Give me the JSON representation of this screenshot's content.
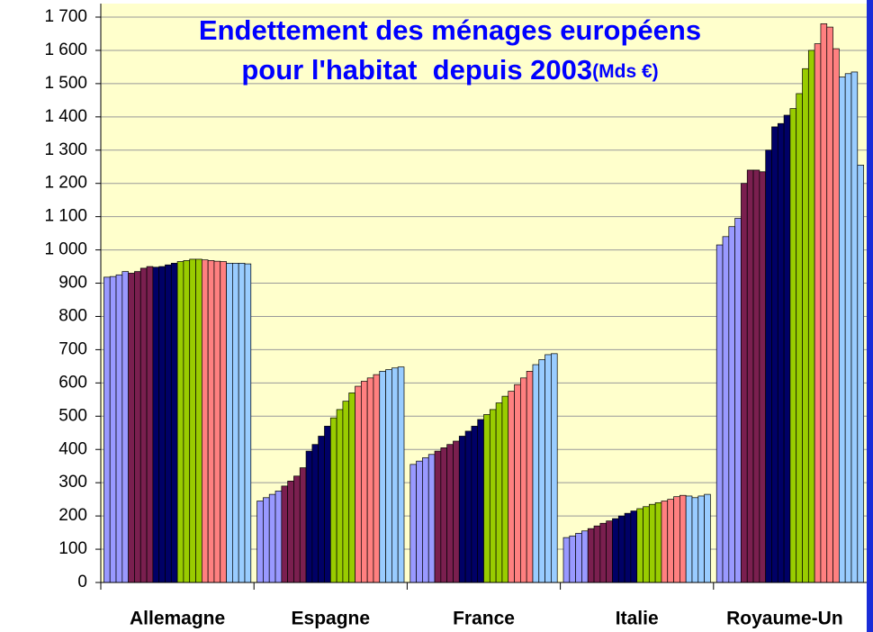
{
  "chart_data": {
    "type": "bar",
    "title": "Endettement des ménages européens",
    "subtitle": "pour l'habitat  depuis 2003",
    "unit": "(Mds €)",
    "categories": [
      "Allemagne",
      "Espagne",
      "France",
      "Italie",
      "Royaume-Un"
    ],
    "series": [
      {
        "color": "#9999ff",
        "values": [
          918,
          245,
          355,
          135,
          1015
        ]
      },
      {
        "color": "#9999ff",
        "values": [
          920,
          255,
          365,
          140,
          1040
        ]
      },
      {
        "color": "#9999ff",
        "values": [
          925,
          265,
          375,
          148,
          1070
        ]
      },
      {
        "color": "#9999ff",
        "values": [
          935,
          275,
          385,
          155,
          1095
        ]
      },
      {
        "color": "#7a1f4f",
        "values": [
          930,
          290,
          395,
          162,
          1200
        ]
      },
      {
        "color": "#7a1f4f",
        "values": [
          935,
          305,
          405,
          170,
          1240
        ]
      },
      {
        "color": "#7a1f4f",
        "values": [
          945,
          320,
          415,
          178,
          1240
        ]
      },
      {
        "color": "#7a1f4f",
        "values": [
          950,
          345,
          425,
          185,
          1235
        ]
      },
      {
        "color": "#000066",
        "values": [
          948,
          395,
          440,
          192,
          1300
        ]
      },
      {
        "color": "#000066",
        "values": [
          950,
          415,
          455,
          200,
          1370
        ]
      },
      {
        "color": "#000066",
        "values": [
          955,
          440,
          470,
          208,
          1380
        ]
      },
      {
        "color": "#000066",
        "values": [
          960,
          470,
          490,
          215,
          1405
        ]
      },
      {
        "color": "#99cc00",
        "values": [
          965,
          495,
          505,
          222,
          1425
        ]
      },
      {
        "color": "#99cc00",
        "values": [
          968,
          520,
          520,
          228,
          1470
        ]
      },
      {
        "color": "#99cc00",
        "values": [
          972,
          545,
          540,
          235,
          1545
        ]
      },
      {
        "color": "#99cc00",
        "values": [
          972,
          570,
          560,
          240,
          1600
        ]
      },
      {
        "color": "#ff8080",
        "values": [
          970,
          590,
          575,
          245,
          1620
        ]
      },
      {
        "color": "#ff8080",
        "values": [
          968,
          605,
          595,
          250,
          1680
        ]
      },
      {
        "color": "#ff8080",
        "values": [
          966,
          615,
          615,
          258,
          1670
        ]
      },
      {
        "color": "#ff8080",
        "values": [
          965,
          625,
          635,
          262,
          1605
        ]
      },
      {
        "color": "#99ccff",
        "values": [
          960,
          635,
          655,
          260,
          1520
        ]
      },
      {
        "color": "#99ccff",
        "values": [
          960,
          640,
          670,
          255,
          1530
        ]
      },
      {
        "color": "#99ccff",
        "values": [
          960,
          645,
          685,
          260,
          1535
        ]
      },
      {
        "color": "#99ccff",
        "values": [
          958,
          648,
          688,
          265,
          1255
        ]
      }
    ],
    "ylim": [
      0,
      1700
    ],
    "yticks": [
      0,
      100,
      200,
      300,
      400,
      500,
      600,
      700,
      800,
      900,
      {
        "value": 1000,
        "label": "1 000"
      },
      {
        "value": 1100,
        "label": "1 100"
      },
      {
        "value": 1200,
        "label": "1 200"
      },
      {
        "value": 1300,
        "label": "1 300"
      },
      {
        "value": 1400,
        "label": "1 400"
      },
      {
        "value": 1500,
        "label": "1 500"
      },
      {
        "value": 1600,
        "label": "1 600"
      },
      {
        "value": 1700,
        "label": "1 700"
      }
    ],
    "grid": true,
    "background": "#ffffcc"
  }
}
